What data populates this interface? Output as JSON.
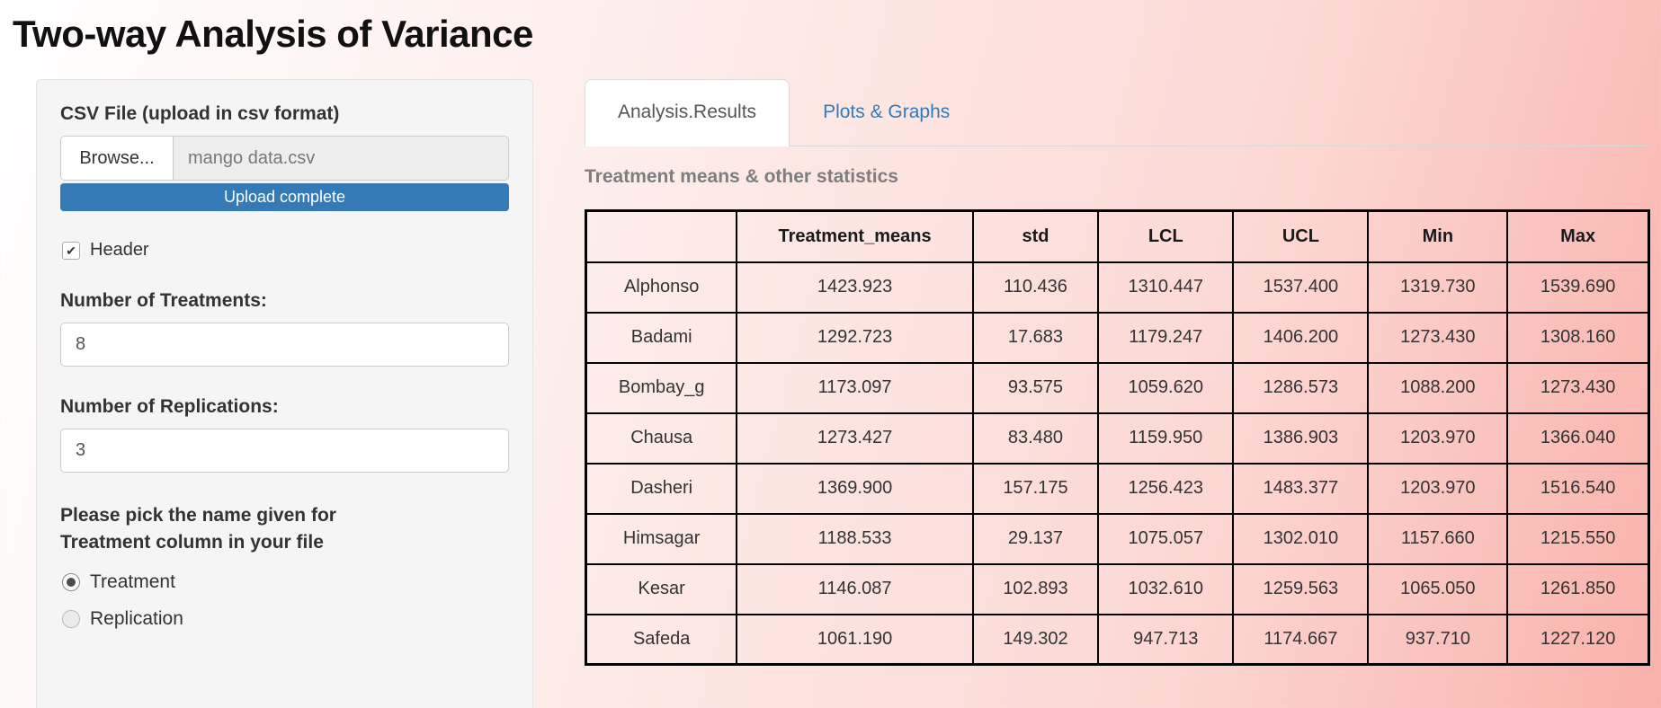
{
  "page": {
    "title": "Two-way Analysis of Variance"
  },
  "colors": {
    "accent_blue": "#337ab7",
    "sidebar_bg": "#f5f5f5",
    "page_gradient_start": "#ffffff",
    "page_gradient_end": "#f9b1ab",
    "table_border": "#000000",
    "heading_gray": "#7e7e7e"
  },
  "sidebar": {
    "file_label": "CSV File (upload in csv format)",
    "browse_button": "Browse...",
    "file_name": "mango data.csv",
    "upload_status": "Upload complete",
    "header_checkbox": {
      "label": "Header",
      "checked": true
    },
    "treatments_label": "Number of Treatments:",
    "treatments_value": "8",
    "replications_label": "Number of Replications:",
    "replications_value": "3",
    "radio_group_label": "Please pick the name given for Treatment column in your file",
    "radio_options": [
      {
        "label": "Treatment",
        "selected": true
      },
      {
        "label": "Replication",
        "selected": false
      }
    ]
  },
  "main": {
    "tabs": [
      {
        "label": "Analysis.Results",
        "active": true
      },
      {
        "label": "Plots & Graphs",
        "active": false
      }
    ],
    "section_heading": "Treatment means & other statistics"
  },
  "chart_data": {
    "type": "table",
    "title": "Treatment means & other statistics",
    "columns": [
      "",
      "Treatment_means",
      "std",
      "LCL",
      "UCL",
      "Min",
      "Max"
    ],
    "rows": [
      [
        "Alphonso",
        "1423.923",
        "110.436",
        "1310.447",
        "1537.400",
        "1319.730",
        "1539.690"
      ],
      [
        "Badami",
        "1292.723",
        "17.683",
        "1179.247",
        "1406.200",
        "1273.430",
        "1308.160"
      ],
      [
        "Bombay_g",
        "1173.097",
        "93.575",
        "1059.620",
        "1286.573",
        "1088.200",
        "1273.430"
      ],
      [
        "Chausa",
        "1273.427",
        "83.480",
        "1159.950",
        "1386.903",
        "1203.970",
        "1366.040"
      ],
      [
        "Dasheri",
        "1369.900",
        "157.175",
        "1256.423",
        "1483.377",
        "1203.970",
        "1516.540"
      ],
      [
        "Himsagar",
        "1188.533",
        "29.137",
        "1075.057",
        "1302.010",
        "1157.660",
        "1215.550"
      ],
      [
        "Kesar",
        "1146.087",
        "102.893",
        "1032.610",
        "1259.563",
        "1065.050",
        "1261.850"
      ],
      [
        "Safeda",
        "1061.190",
        "149.302",
        "947.713",
        "1174.667",
        "937.710",
        "1227.120"
      ]
    ]
  }
}
